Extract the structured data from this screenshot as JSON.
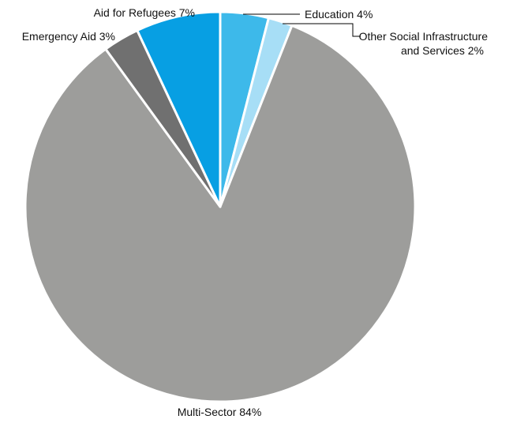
{
  "chart_data": {
    "type": "pie",
    "title": "",
    "start_angle_deg": 0,
    "direction": "clockwise",
    "slices": [
      {
        "label": "Education",
        "value": 4,
        "display": "Education 4%",
        "color": "#3db9ea"
      },
      {
        "label": "Other Social Infrastructure and Services",
        "value": 2,
        "display_lines": [
          "Other Social Infrastructure",
          "and Services 2%"
        ],
        "color": "#a7def6"
      },
      {
        "label": "Multi-Sector",
        "value": 84,
        "display": "Multi-Sector 84%",
        "color": "#9d9d9b"
      },
      {
        "label": "Emergency Aid",
        "value": 3,
        "display": "Emergency Aid 3%",
        "color": "#707070"
      },
      {
        "label": "Aid for Refugees",
        "value": 7,
        "display": "Aid for Refugees 7%",
        "color": "#079fe3"
      }
    ]
  }
}
